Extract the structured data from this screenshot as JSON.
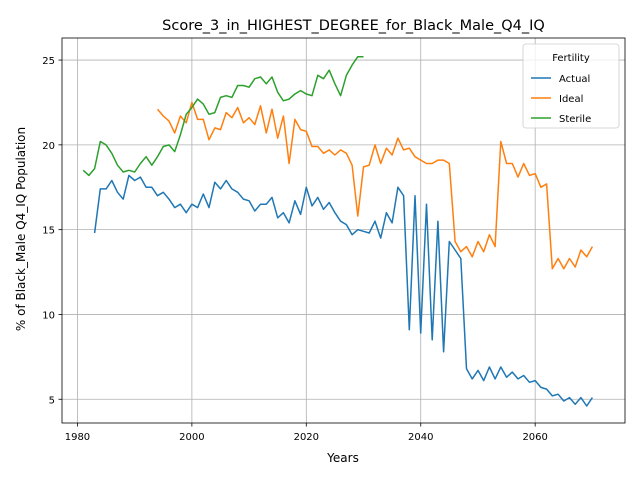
{
  "chart_data": {
    "type": "line",
    "title": "Score_3_in_HIGHEST_DEGREE_for_Black_Male_Q4_IQ",
    "xlabel": "Years",
    "ylabel": "% of Black_Male Q4_IQ Population",
    "xlim": [
      1977.3,
      2075.7
    ],
    "ylim": [
      3.6,
      26.3
    ],
    "xticks": [
      1980,
      2000,
      2020,
      2040,
      2060
    ],
    "yticks": [
      5,
      10,
      15,
      20,
      25
    ],
    "grid": true,
    "legend": {
      "title": "Fertility",
      "placement": "top-right"
    },
    "series": [
      {
        "name": "Actual",
        "color": "#1f77b4",
        "x": [
          1983,
          1984,
          1985,
          1986,
          1987,
          1988,
          1989,
          1990,
          1991,
          1992,
          1993,
          1994,
          1995,
          1996,
          1997,
          1998,
          1999,
          2000,
          2001,
          2002,
          2003,
          2004,
          2005,
          2006,
          2007,
          2008,
          2009,
          2010,
          2011,
          2012,
          2013,
          2014,
          2015,
          2016,
          2017,
          2018,
          2019,
          2020,
          2021,
          2022,
          2023,
          2024,
          2025,
          2026,
          2027,
          2028,
          2029,
          2030,
          2031,
          2032,
          2033,
          2034,
          2035,
          2036,
          2037,
          2038,
          2039,
          2040,
          2041,
          2042,
          2043,
          2044,
          2045,
          2046,
          2047,
          2048,
          2049,
          2050,
          2051,
          2052,
          2053,
          2054,
          2055,
          2056,
          2057,
          2058,
          2059,
          2060,
          2061,
          2062,
          2063,
          2064,
          2065,
          2066,
          2067,
          2068,
          2069,
          2070
        ],
        "values": [
          14.8,
          17.4,
          17.4,
          17.9,
          17.2,
          16.8,
          18.2,
          17.9,
          18.1,
          17.5,
          17.5,
          17.0,
          17.2,
          16.8,
          16.3,
          16.5,
          16.0,
          16.5,
          16.3,
          17.1,
          16.3,
          17.8,
          17.4,
          17.9,
          17.4,
          17.2,
          16.8,
          16.7,
          16.1,
          16.5,
          16.5,
          16.9,
          15.7,
          16.0,
          15.4,
          16.7,
          15.9,
          17.5,
          16.4,
          16.9,
          16.2,
          16.6,
          16.0,
          15.5,
          15.3,
          14.7,
          15.0,
          14.9,
          14.8,
          15.5,
          14.5,
          16.0,
          15.4,
          17.5,
          17.0,
          9.1,
          17.0,
          8.9,
          16.5,
          8.5,
          15.5,
          7.8,
          14.3,
          13.8,
          13.3,
          6.8,
          6.2,
          6.7,
          6.1,
          6.9,
          6.2,
          6.9,
          6.3,
          6.6,
          6.2,
          6.4,
          6.0,
          6.1,
          5.7,
          5.6,
          5.2,
          5.3,
          4.9,
          5.1,
          4.7,
          5.1,
          4.6,
          5.1
        ]
      },
      {
        "name": "Ideal",
        "color": "#ff7f0e",
        "x": [
          1994,
          1995,
          1996,
          1997,
          1998,
          1999,
          2000,
          2001,
          2002,
          2003,
          2004,
          2005,
          2006,
          2007,
          2008,
          2009,
          2010,
          2011,
          2012,
          2013,
          2014,
          2015,
          2016,
          2017,
          2018,
          2019,
          2020,
          2021,
          2022,
          2023,
          2024,
          2025,
          2026,
          2027,
          2028,
          2029,
          2030,
          2031,
          2032,
          2033,
          2034,
          2035,
          2036,
          2037,
          2038,
          2039,
          2040,
          2041,
          2042,
          2043,
          2044,
          2045,
          2046,
          2047,
          2048,
          2049,
          2050,
          2051,
          2052,
          2053,
          2054,
          2055,
          2056,
          2057,
          2058,
          2059,
          2060,
          2061,
          2062,
          2063,
          2064,
          2065,
          2066,
          2067,
          2068,
          2069,
          2070
        ],
        "values": [
          22.1,
          21.7,
          21.4,
          20.7,
          21.7,
          21.3,
          22.5,
          21.5,
          21.5,
          20.3,
          21.0,
          20.9,
          21.9,
          21.6,
          22.2,
          21.3,
          21.6,
          21.2,
          22.3,
          20.7,
          22.1,
          20.4,
          21.7,
          18.9,
          21.5,
          20.9,
          20.8,
          19.9,
          19.9,
          19.5,
          19.7,
          19.4,
          19.7,
          19.5,
          18.8,
          15.8,
          18.7,
          18.8,
          20.0,
          18.9,
          19.8,
          19.4,
          20.4,
          19.7,
          19.8,
          19.3,
          19.1,
          18.9,
          18.9,
          19.1,
          19.1,
          18.9,
          14.3,
          13.7,
          14.0,
          13.4,
          14.3,
          13.7,
          14.7,
          14.0,
          20.2,
          18.9,
          18.9,
          18.1,
          18.9,
          18.2,
          18.3,
          17.5,
          17.7,
          12.7,
          13.3,
          12.7,
          13.3,
          12.8,
          13.8,
          13.4,
          14.0
        ]
      },
      {
        "name": "Sterile",
        "color": "#2ca02c",
        "x": [
          1981,
          1982,
          1983,
          1984,
          1985,
          1986,
          1987,
          1988,
          1989,
          1990,
          1991,
          1992,
          1993,
          1994,
          1995,
          1996,
          1997,
          1998,
          1999,
          2000,
          2001,
          2002,
          2003,
          2004,
          2005,
          2006,
          2007,
          2008,
          2009,
          2010,
          2011,
          2012,
          2013,
          2014,
          2015,
          2016,
          2017,
          2018,
          2019,
          2020,
          2021,
          2022,
          2023,
          2024,
          2025,
          2026,
          2027,
          2028,
          2029,
          2030
        ],
        "values": [
          18.5,
          18.2,
          18.6,
          20.2,
          20.0,
          19.5,
          18.8,
          18.4,
          18.5,
          18.4,
          18.9,
          19.3,
          18.8,
          19.3,
          19.9,
          20.0,
          19.6,
          20.6,
          21.8,
          22.2,
          22.7,
          22.4,
          21.8,
          21.9,
          22.8,
          22.9,
          22.8,
          23.5,
          23.5,
          23.4,
          23.9,
          24.0,
          23.6,
          24.0,
          23.1,
          22.6,
          22.7,
          23.0,
          23.2,
          23.0,
          22.9,
          24.1,
          23.9,
          24.4,
          23.6,
          22.9,
          24.1,
          24.7,
          25.2,
          25.2
        ]
      }
    ]
  }
}
